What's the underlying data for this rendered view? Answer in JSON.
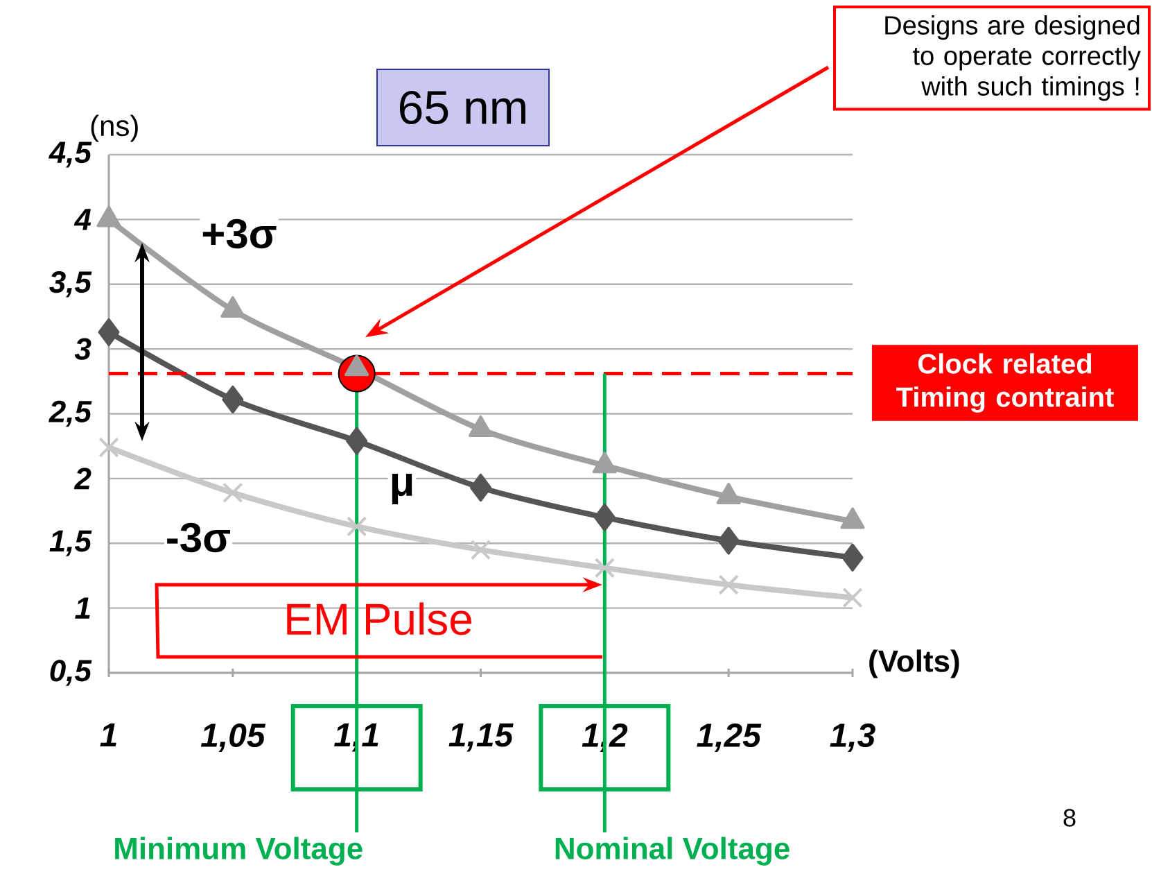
{
  "chart_data": {
    "type": "line",
    "title": "65 nm",
    "xlabel": "(Volts)",
    "ylabel": "(ns)",
    "x": [
      1,
      1.05,
      1.1,
      1.15,
      1.2,
      1.25,
      1.3
    ],
    "series": [
      {
        "type": "scatter",
        "color": "#ff0000",
        "marker": "circle",
        "x": [
          1.1
        ],
        "values": [
          2.81
        ]
      },
      {
        "name": "+3σ",
        "color": "#a0a0a0",
        "marker": "triangle",
        "values": [
          4.0,
          3.3,
          2.85,
          2.38,
          2.1,
          1.86,
          1.67
        ]
      },
      {
        "name": "μ",
        "color": "#555555",
        "marker": "diamond",
        "values": [
          3.13,
          2.61,
          2.29,
          1.93,
          1.7,
          1.52,
          1.39
        ]
      },
      {
        "name": "-3σ",
        "color": "#c8c8c8",
        "marker": "cross",
        "values": [
          2.24,
          1.89,
          1.63,
          1.45,
          1.31,
          1.18,
          1.08
        ]
      }
    ],
    "xlim": [
      1,
      1.3
    ],
    "xticks": [
      1,
      {
        "value": 1.05,
        "label": "1,05"
      },
      {
        "value": 1.1,
        "label": "1,1"
      },
      {
        "value": 1.15,
        "label": "1,15"
      },
      {
        "value": 1.2,
        "label": "1,2"
      },
      {
        "value": 1.25,
        "label": "1,25"
      },
      {
        "value": 1.3,
        "label": "1,3"
      }
    ],
    "ylim": [
      0.5,
      4.5
    ],
    "yticks": [
      {
        "value": 0.5,
        "label": "0,5"
      },
      1,
      {
        "value": 1.5,
        "label": "1,5"
      },
      2,
      {
        "value": 2.5,
        "label": "2,5"
      },
      3,
      {
        "value": 3.5,
        "label": "3,5"
      },
      4,
      {
        "value": 4.5,
        "label": "4,5"
      }
    ],
    "grid": "y",
    "ref_lines": [
      {
        "axis": "y",
        "value": 2.81,
        "label": "Clock related Timing contraint",
        "color": "#ff0000",
        "line_style": "dashed"
      },
      {
        "axis": "x",
        "value": 1.1,
        "label": "Minimum Voltage",
        "color": "#00b050"
      },
      {
        "axis": "x",
        "value": 1.2,
        "label": "Nominal Voltage",
        "color": "#00b050"
      }
    ],
    "annotations": [
      "Designs are designed to operate correctly with such timings !",
      "EM Pulse",
      "8"
    ]
  }
}
